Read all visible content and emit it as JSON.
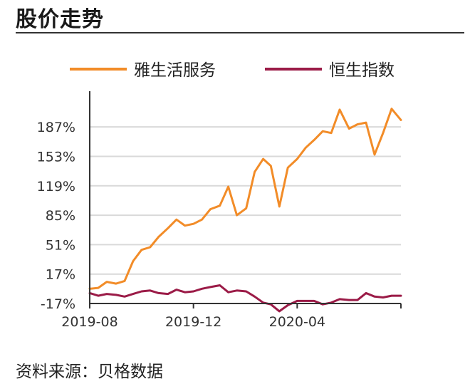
{
  "header": {
    "title": "股价走势"
  },
  "footer": {
    "source": "资料来源：贝格数据"
  },
  "chart_data": {
    "type": "line",
    "ylabel": "",
    "xlabel": "",
    "yticks": [
      "187%",
      "153%",
      "119%",
      "85%",
      "51%",
      "17%",
      "-17%"
    ],
    "ytick_values": [
      187,
      153,
      119,
      85,
      51,
      17,
      -17
    ],
    "ylim": [
      -17,
      225
    ],
    "xticks": [
      "2019-08",
      "2019-12",
      "2020-04"
    ],
    "xtick_dates": [
      "2019-08-01",
      "2019-12-01",
      "2020-04-01"
    ],
    "grid": "horizontal",
    "legend_position": "top",
    "x": [
      "2019-08-01",
      "2019-08-11",
      "2019-08-21",
      "2019-09-01",
      "2019-09-11",
      "2019-09-21",
      "2019-10-01",
      "2019-10-11",
      "2019-10-21",
      "2019-11-01",
      "2019-11-11",
      "2019-11-21",
      "2019-12-01",
      "2019-12-11",
      "2019-12-21",
      "2020-01-01",
      "2020-01-11",
      "2020-01-21",
      "2020-02-01",
      "2020-02-11",
      "2020-02-21",
      "2020-03-01",
      "2020-03-11",
      "2020-03-21",
      "2020-04-01",
      "2020-04-11",
      "2020-04-21",
      "2020-05-01",
      "2020-05-11",
      "2020-05-21",
      "2020-06-01",
      "2020-06-11",
      "2020-06-21",
      "2020-07-01",
      "2020-07-11",
      "2020-07-21",
      "2020-08-01"
    ],
    "series": [
      {
        "name": "雅生活服务",
        "color": "#f28c28",
        "values": [
          0,
          1,
          8,
          6,
          9,
          32,
          45,
          48,
          60,
          70,
          80,
          73,
          75,
          80,
          92,
          96,
          118,
          85,
          93,
          135,
          150,
          142,
          95,
          140,
          150,
          163,
          172,
          182,
          180,
          207,
          185,
          190,
          192,
          155,
          180,
          208,
          195
        ]
      },
      {
        "name": "恒生指数",
        "color": "#9b1b47",
        "values": [
          -5,
          -8,
          -6,
          -7,
          -9,
          -6,
          -3,
          -2,
          -5,
          -6,
          -1,
          -4,
          -3,
          0,
          2,
          4,
          -4,
          -2,
          -3,
          -9,
          -16,
          -18,
          -26,
          -19,
          -14,
          -14,
          -14,
          -18,
          -16,
          -12,
          -13,
          -13,
          -5,
          -9,
          -10,
          -8,
          -8
        ]
      }
    ]
  }
}
